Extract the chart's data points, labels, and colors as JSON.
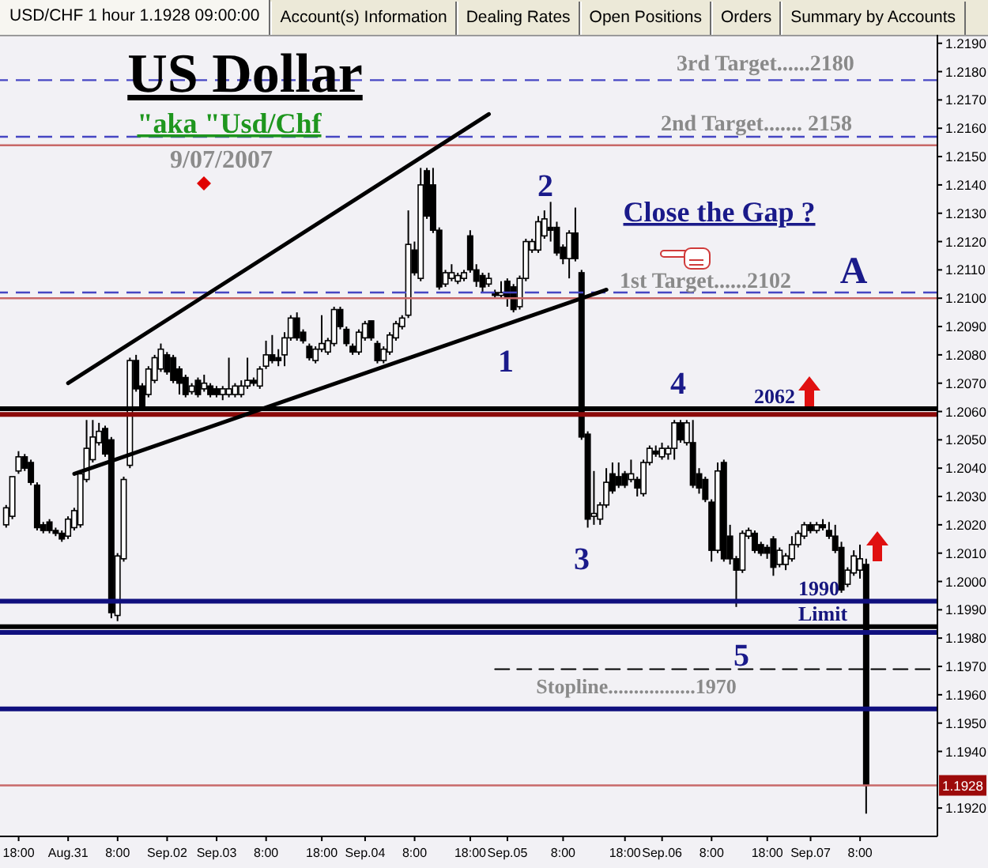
{
  "chart_data": {
    "type": "candlestick",
    "title": "USD/CHF 1 hour 1.1928 09:00:00",
    "categories": [
      null,
      null,
      "18:00",
      null,
      null,
      null,
      null,
      null,
      null,
      null,
      "Aug.31",
      null,
      null,
      null,
      null,
      null,
      null,
      null,
      "8:00",
      null,
      null,
      null,
      null,
      null,
      null,
      null,
      "Sep.02",
      null,
      null,
      null,
      null,
      null,
      null,
      null,
      "Sep.03",
      null,
      null,
      null,
      null,
      null,
      null,
      null,
      "8:00",
      null,
      null,
      null,
      null,
      null,
      null,
      null,
      null,
      "18:00",
      null,
      null,
      null,
      null,
      null,
      null,
      "Sep.04",
      null,
      null,
      null,
      null,
      null,
      null,
      null,
      "8:00",
      null,
      null,
      null,
      null,
      null,
      null,
      null,
      null,
      "18:00",
      null,
      null,
      null,
      null,
      null,
      "Sep.05",
      null,
      null,
      null,
      null,
      null,
      null,
      null,
      null,
      "8:00",
      null,
      null,
      null,
      null,
      null,
      null,
      null,
      null,
      null,
      "18:00",
      null,
      null,
      null,
      null,
      null,
      "Sep.06",
      null,
      null,
      null,
      null,
      null,
      null,
      null,
      "8:00",
      null,
      null,
      null,
      null,
      null,
      null,
      null,
      null,
      "18:00",
      null,
      null,
      null,
      null,
      null,
      null,
      "Sep.07",
      null,
      null,
      null,
      null,
      null,
      null,
      null,
      "8:00",
      null,
      null,
      null,
      null,
      null,
      null,
      null,
      null,
      null,
      null,
      null,
      null
    ],
    "ohlc": [
      [
        1.202,
        1.2027,
        1.2019,
        1.2026
      ],
      [
        1.2023,
        1.2037,
        1.2022,
        1.2037
      ],
      [
        1.2039,
        1.2046,
        1.2038,
        1.2044
      ],
      [
        1.2044,
        1.2045,
        1.2039,
        1.204
      ],
      [
        1.2042,
        1.2043,
        1.2034,
        1.2035
      ],
      [
        1.2034,
        1.2035,
        1.2018,
        1.2019
      ],
      [
        1.202,
        1.2021,
        1.2017,
        1.2018
      ],
      [
        1.2021,
        1.2022,
        1.2017,
        1.2018
      ],
      [
        1.2018,
        1.2019,
        1.2016,
        1.2017
      ],
      [
        1.2017,
        1.2018,
        1.2014,
        1.2015
      ],
      [
        1.2016,
        1.2023,
        1.2015,
        1.2022
      ],
      [
        1.2019,
        1.2026,
        1.2018,
        1.2025
      ],
      [
        1.202,
        1.2039,
        1.2019,
        1.2038
      ],
      [
        1.2036,
        1.2057,
        1.2035,
        1.2047
      ],
      [
        1.2043,
        1.2057,
        1.2042,
        1.2051
      ],
      [
        1.2049,
        1.2056,
        1.2048,
        1.2053
      ],
      [
        1.2054,
        1.2055,
        1.2044,
        1.2045
      ],
      [
        1.205,
        1.2051,
        1.1987,
        1.1989
      ],
      [
        1.1988,
        1.201,
        1.1986,
        1.2009
      ],
      [
        1.2008,
        1.2037,
        1.2007,
        1.2036
      ],
      [
        1.2041,
        1.2079,
        1.204,
        1.2078
      ],
      [
        1.2078,
        1.208,
        1.2067,
        1.2068
      ],
      [
        1.2069,
        1.207,
        1.2061,
        1.2062
      ],
      [
        1.2066,
        1.2076,
        1.2065,
        1.2075
      ],
      [
        1.2071,
        1.208,
        1.207,
        1.2079
      ],
      [
        1.2075,
        1.2084,
        1.2074,
        1.2082
      ],
      [
        1.208,
        1.2081,
        1.2073,
        1.2074
      ],
      [
        1.2079,
        1.208,
        1.207,
        1.2071
      ],
      [
        1.2075,
        1.2076,
        1.2066,
        1.207
      ],
      [
        1.2072,
        1.2073,
        1.2065,
        1.2066
      ],
      [
        1.2067,
        1.207,
        1.2066,
        1.2069
      ],
      [
        1.2071,
        1.2072,
        1.2065,
        1.2066
      ],
      [
        1.2068,
        1.2073,
        1.2067,
        1.207
      ],
      [
        1.2069,
        1.207,
        1.2065,
        1.2066
      ],
      [
        1.2068,
        1.2069,
        1.2065,
        1.2066
      ],
      [
        1.2066,
        1.2069,
        1.2064,
        1.2068
      ],
      [
        1.2066,
        1.2079,
        1.2065,
        1.2068
      ],
      [
        1.2066,
        1.207,
        1.2065,
        1.2069
      ],
      [
        1.2066,
        1.2071,
        1.2065,
        1.2069
      ],
      [
        1.2069,
        1.2079,
        1.2068,
        1.2071
      ],
      [
        1.2071,
        1.2072,
        1.2069,
        1.207
      ],
      [
        1.2069,
        1.2076,
        1.2068,
        1.2075
      ],
      [
        1.2076,
        1.2085,
        1.2075,
        1.208
      ],
      [
        1.208,
        1.2087,
        1.2077,
        1.2078
      ],
      [
        1.2079,
        1.2082,
        1.2076,
        1.2078
      ],
      [
        1.208,
        1.2088,
        1.2076,
        1.2086
      ],
      [
        1.2086,
        1.2094,
        1.2085,
        1.2093
      ],
      [
        1.2093,
        1.2095,
        1.2085,
        1.2086
      ],
      [
        1.2088,
        1.2089,
        1.2084,
        1.2085
      ],
      [
        1.2083,
        1.2084,
        1.2078,
        1.2079
      ],
      [
        1.2078,
        1.2083,
        1.2077,
        1.2082
      ],
      [
        1.2082,
        1.2094,
        1.2081,
        1.2084
      ],
      [
        1.2081,
        1.2086,
        1.208,
        1.2085
      ],
      [
        1.2084,
        1.2097,
        1.2083,
        1.2096
      ],
      [
        1.2096,
        1.2097,
        1.2089,
        1.209
      ],
      [
        1.2089,
        1.209,
        1.2083,
        1.2084
      ],
      [
        1.2083,
        1.2084,
        1.208,
        1.2081
      ],
      [
        1.2081,
        1.2089,
        1.208,
        1.2088
      ],
      [
        1.2086,
        1.2092,
        1.2085,
        1.2091
      ],
      [
        1.2092,
        1.2092,
        1.2085,
        1.2086
      ],
      [
        1.2084,
        1.2085,
        1.2077,
        1.2078
      ],
      [
        1.2078,
        1.2083,
        1.2077,
        1.2082
      ],
      [
        1.2081,
        1.2088,
        1.208,
        1.2087
      ],
      [
        1.2086,
        1.2092,
        1.2085,
        1.2091
      ],
      [
        1.209,
        1.2094,
        1.2089,
        1.2093
      ],
      [
        1.2094,
        1.2131,
        1.2093,
        1.2119
      ],
      [
        1.2117,
        1.212,
        1.2108,
        1.2109
      ],
      [
        1.2107,
        1.2146,
        1.2106,
        1.214
      ],
      [
        1.2145,
        1.2146,
        1.2128,
        1.2129
      ],
      [
        1.214,
        1.2146,
        1.2123,
        1.2124
      ],
      [
        1.2124,
        1.2125,
        1.2103,
        1.2104
      ],
      [
        1.2105,
        1.211,
        1.2104,
        1.2109
      ],
      [
        1.2107,
        1.2112,
        1.2106,
        1.2109
      ],
      [
        1.2106,
        1.2109,
        1.2105,
        1.2108
      ],
      [
        1.2107,
        1.211,
        1.2106,
        1.2109
      ],
      [
        1.2122,
        1.2124,
        1.2109,
        1.211
      ],
      [
        1.211,
        1.2112,
        1.2104,
        1.2106
      ],
      [
        1.2108,
        1.2109,
        1.2102,
        1.2104
      ],
      [
        1.2105,
        1.2109,
        1.2104,
        1.2107
      ],
      [
        1.2102,
        1.2103,
        1.21,
        1.2101
      ],
      [
        1.2101,
        1.2106,
        1.21,
        1.2102
      ],
      [
        1.2106,
        1.2107,
        1.2097,
        1.21
      ],
      [
        1.2104,
        1.2105,
        1.2095,
        1.2096
      ],
      [
        1.2097,
        1.2108,
        1.2096,
        1.2107
      ],
      [
        1.2107,
        1.2121,
        1.2106,
        1.212
      ],
      [
        1.2117,
        1.2121,
        1.2116,
        1.212
      ],
      [
        1.2117,
        1.2129,
        1.2116,
        1.2127
      ],
      [
        1.2122,
        1.2131,
        1.2121,
        1.2128
      ],
      [
        1.2125,
        1.2134,
        1.212,
        1.2124
      ],
      [
        1.2125,
        1.2127,
        1.2115,
        1.2116
      ],
      [
        1.2118,
        1.2119,
        1.2112,
        1.2114
      ],
      [
        1.2114,
        1.2124,
        1.2107,
        1.2123
      ],
      [
        1.2123,
        1.2132,
        1.2113,
        1.2114
      ],
      [
        1.2109,
        1.211,
        1.205,
        1.2051
      ],
      [
        1.2052,
        1.2053,
        1.2019,
        1.2022
      ],
      [
        1.2023,
        1.2039,
        1.202,
        1.2024
      ],
      [
        1.2022,
        1.2028,
        1.202,
        1.2027
      ],
      [
        1.2027,
        1.204,
        1.2026,
        1.2035
      ],
      [
        1.2038,
        1.2042,
        1.2031,
        1.2032
      ],
      [
        1.2037,
        1.2042,
        1.2033,
        1.2034
      ],
      [
        1.2038,
        1.2039,
        1.2033,
        1.2034
      ],
      [
        1.2036,
        1.2043,
        1.2035,
        1.2038
      ],
      [
        1.2036,
        1.2037,
        1.203,
        1.2033
      ],
      [
        1.2031,
        1.2043,
        1.203,
        1.2042
      ],
      [
        1.2042,
        1.2048,
        1.2041,
        1.2047
      ],
      [
        1.2046,
        1.2048,
        1.2044,
        1.2045
      ],
      [
        1.2044,
        1.2049,
        1.2043,
        1.2047
      ],
      [
        1.2045,
        1.2048,
        1.2043,
        1.2047
      ],
      [
        1.2047,
        1.2057,
        1.2043,
        1.2056
      ],
      [
        1.2056,
        1.2057,
        1.2049,
        1.205
      ],
      [
        1.2049,
        1.2057,
        1.2048,
        1.2056
      ],
      [
        1.2049,
        1.2057,
        1.2033,
        1.2034
      ],
      [
        1.2038,
        1.204,
        1.2031,
        1.2033
      ],
      [
        1.2036,
        1.2037,
        1.2028,
        1.2029
      ],
      [
        1.2028,
        1.2029,
        1.2007,
        1.2011
      ],
      [
        1.2011,
        1.2042,
        1.201,
        1.2039
      ],
      [
        1.2042,
        1.2043,
        1.2007,
        1.2008
      ],
      [
        1.2016,
        1.202,
        1.2006,
        1.2008
      ],
      [
        1.2008,
        1.2009,
        1.1991,
        1.2004
      ],
      [
        1.2004,
        1.2018,
        1.2003,
        1.2017
      ],
      [
        1.2016,
        1.2019,
        1.2015,
        1.2018
      ],
      [
        1.2017,
        1.2018,
        1.201,
        1.2011
      ],
      [
        1.2013,
        1.2014,
        1.2009,
        1.201
      ],
      [
        1.2012,
        1.2013,
        1.2008,
        1.201
      ],
      [
        1.2015,
        1.2016,
        1.2002,
        1.2005
      ],
      [
        1.2006,
        1.2012,
        1.2005,
        1.2011
      ],
      [
        1.2006,
        1.201,
        1.2004,
        1.2009
      ],
      [
        1.2008,
        1.2016,
        1.2007,
        1.2013
      ],
      [
        1.2013,
        1.2018,
        1.2012,
        1.2017
      ],
      [
        1.2016,
        1.2021,
        1.2015,
        1.202
      ],
      [
        1.202,
        1.2021,
        1.2017,
        1.2018
      ],
      [
        1.2018,
        1.2021,
        1.2017,
        1.202
      ],
      [
        1.202,
        1.2022,
        1.2018,
        1.2019
      ],
      [
        1.2018,
        1.2021,
        1.2015,
        1.2016
      ],
      [
        1.2016,
        1.202,
        1.201,
        1.2011
      ],
      [
        1.2012,
        1.2014,
        1.1996,
        1.1997
      ],
      [
        1.1999,
        1.2005,
        1.1998,
        1.2004
      ],
      [
        1.2003,
        1.2011,
        1.2002,
        1.2009
      ],
      [
        1.2004,
        1.2013,
        1.2001,
        1.2008
      ],
      [
        1.2006,
        1.2008,
        1.1918,
        1.1928
      ],
      null,
      null,
      null,
      null,
      null,
      null,
      null,
      null,
      null,
      null,
      null
    ],
    "series": [
      {
        "type": "line",
        "color": "#000000",
        "values": [
          null,
          null,
          null,
          null,
          null,
          null,
          null,
          null,
          null,
          null,
          1.207,
          null,
          null,
          null,
          null,
          null,
          null,
          null,
          null,
          null,
          null,
          null,
          null,
          null,
          null,
          null,
          null,
          null,
          null,
          null,
          null,
          null,
          null,
          null,
          null,
          null,
          null,
          null,
          null,
          null,
          null,
          null,
          null,
          null,
          null,
          null,
          null,
          null,
          null,
          null,
          null,
          null,
          null,
          null,
          null,
          null,
          null,
          null,
          null,
          null,
          null,
          null,
          null,
          null,
          null,
          null,
          null,
          null,
          null,
          null,
          null,
          null,
          null,
          null,
          null,
          null,
          null,
          null,
          1.2165,
          null,
          null,
          null,
          null,
          null,
          null,
          null,
          null,
          null,
          null,
          null,
          null,
          null,
          null,
          null,
          null,
          null,
          null,
          null,
          null,
          null,
          null,
          null,
          null,
          null,
          null,
          null,
          null,
          null,
          null,
          null,
          null,
          null,
          null,
          null,
          null,
          null,
          null,
          null,
          null,
          null,
          null,
          null,
          null,
          null,
          null,
          null,
          null,
          null,
          null,
          null,
          null,
          null,
          null,
          null,
          null,
          null,
          null,
          null,
          null,
          null,
          null,
          null,
          null,
          null,
          null,
          null,
          null,
          null,
          null,
          null,
          null
        ]
      },
      {
        "type": "line",
        "color": "#000000",
        "values": [
          null,
          null,
          null,
          null,
          null,
          null,
          null,
          null,
          null,
          null,
          null,
          1.2038,
          null,
          null,
          null,
          null,
          null,
          null,
          null,
          null,
          null,
          null,
          null,
          null,
          null,
          null,
          null,
          null,
          null,
          null,
          null,
          null,
          null,
          null,
          null,
          null,
          null,
          null,
          null,
          null,
          null,
          null,
          null,
          null,
          null,
          null,
          null,
          null,
          null,
          null,
          null,
          null,
          null,
          null,
          null,
          null,
          null,
          null,
          null,
          null,
          null,
          null,
          null,
          null,
          null,
          null,
          null,
          null,
          null,
          null,
          null,
          null,
          null,
          null,
          null,
          null,
          null,
          null,
          null,
          null,
          null,
          null,
          null,
          null,
          null,
          null,
          null,
          null,
          null,
          null,
          null,
          null,
          null,
          null,
          null,
          null,
          null,
          1.2103,
          null,
          null,
          null,
          null,
          null,
          null,
          null,
          null,
          null,
          null,
          null,
          null,
          null,
          null,
          null,
          null,
          null,
          null,
          null,
          null,
          null,
          null,
          null,
          null,
          null,
          null,
          null,
          null,
          null,
          null,
          null,
          null,
          null,
          null,
          null,
          null,
          null,
          null,
          null,
          null,
          null,
          null,
          null,
          null,
          null,
          null,
          null,
          null,
          null,
          null,
          null,
          null,
          null
        ]
      },
      {
        "type": "line",
        "name": "Stopline.................1970",
        "color": "#000000",
        "line_style": "dashed",
        "values": [
          null,
          null,
          null,
          null,
          null,
          null,
          null,
          null,
          null,
          null,
          null,
          null,
          null,
          null,
          null,
          null,
          null,
          null,
          null,
          null,
          null,
          null,
          null,
          null,
          null,
          null,
          null,
          null,
          null,
          null,
          null,
          null,
          null,
          null,
          null,
          null,
          null,
          null,
          null,
          null,
          null,
          null,
          null,
          null,
          null,
          null,
          null,
          null,
          null,
          null,
          null,
          null,
          null,
          null,
          null,
          null,
          null,
          null,
          null,
          null,
          null,
          null,
          null,
          null,
          null,
          null,
          null,
          null,
          null,
          null,
          null,
          null,
          null,
          null,
          null,
          null,
          null,
          null,
          null,
          1.1969,
          null,
          null,
          null,
          null,
          null,
          null,
          null,
          null,
          null,
          null,
          null,
          null,
          null,
          null,
          null,
          null,
          null,
          null,
          null,
          null,
          null,
          null,
          null,
          null,
          null,
          null,
          null,
          null,
          null,
          null,
          null,
          null,
          null,
          null,
          null,
          null,
          null,
          null,
          null,
          null,
          null,
          null,
          null,
          null,
          null,
          null,
          null,
          null,
          null,
          null,
          null,
          null,
          null,
          null,
          null,
          null,
          null,
          null,
          null,
          null,
          null,
          null,
          null,
          null,
          null,
          null,
          null,
          null,
          null,
          null,
          1.1969
        ]
      }
    ],
    "ylim": [
      1.191,
      1.2193
    ],
    "yticks": [
      {
        "value": 1.192,
        "label": "1.1920"
      },
      {
        "value": 1.194,
        "label": "1.1940"
      },
      {
        "value": 1.195,
        "label": "1.1950"
      },
      {
        "value": 1.196,
        "label": "1.1960"
      },
      {
        "value": 1.197,
        "label": "1.1970"
      },
      {
        "value": 1.198,
        "label": "1.1980"
      },
      {
        "value": 1.199,
        "label": "1.1990"
      },
      {
        "value": 1.2,
        "label": "1.2000"
      },
      {
        "value": 1.201,
        "label": "1.2010"
      },
      {
        "value": 1.202,
        "label": "1.2020"
      },
      {
        "value": 1.203,
        "label": "1.2030"
      },
      {
        "value": 1.204,
        "label": "1.2040"
      },
      {
        "value": 1.205,
        "label": "1.2050"
      },
      {
        "value": 1.206,
        "label": "1.2060"
      },
      {
        "value": 1.207,
        "label": "1.2070"
      },
      {
        "value": 1.208,
        "label": "1.2080"
      },
      {
        "value": 1.209,
        "label": "1.2090"
      },
      {
        "value": 1.21,
        "label": "1.2100"
      },
      {
        "value": 1.211,
        "label": "1.2110"
      },
      {
        "value": 1.212,
        "label": "1.2120"
      },
      {
        "value": 1.213,
        "label": "1.2130"
      },
      {
        "value": 1.214,
        "label": "1.2140"
      },
      {
        "value": 1.215,
        "label": "1.2150"
      },
      {
        "value": 1.216,
        "label": "1.2160"
      },
      {
        "value": 1.217,
        "label": "1.2170"
      },
      {
        "value": 1.218,
        "label": "1.2180"
      },
      {
        "value": 1.219,
        "label": "1.2190"
      }
    ],
    "ref_lines": [
      {
        "axis": "y",
        "value": 1.2177,
        "label": "3rd Target......2180",
        "color": "#4646c3",
        "line_style": "dashed"
      },
      {
        "axis": "y",
        "value": 1.2157,
        "label": "2nd Target....... 2158",
        "color": "#4646c3",
        "line_style": "dashed"
      },
      {
        "axis": "y",
        "value": 1.2154,
        "label": null,
        "color": "#c86868",
        "line_style": "solid"
      },
      {
        "axis": "y",
        "value": 1.2102,
        "label": "1st Target......2102",
        "color": "#4646c3",
        "line_style": "dashed"
      },
      {
        "axis": "y",
        "value": 1.21,
        "label": null,
        "color": "#c86868",
        "line_style": "solid"
      },
      {
        "axis": "y",
        "value": 1.2061,
        "label": null,
        "color": "#000000",
        "line_style": "solid"
      },
      {
        "axis": "y",
        "value": 1.2059,
        "label": null,
        "color": "#8b0a0a",
        "line_style": "solid"
      },
      {
        "axis": "y",
        "value": 1.1993,
        "label": "1990 Limit",
        "color": "#10107e",
        "line_style": "solid"
      },
      {
        "axis": "y",
        "value": 1.1984,
        "label": null,
        "color": "#000000",
        "line_style": "solid"
      },
      {
        "axis": "y",
        "value": 1.1982,
        "label": null,
        "color": "#10107e",
        "line_style": "solid"
      },
      {
        "axis": "y",
        "value": 1.1955,
        "label": null,
        "color": "#10107e",
        "line_style": "solid"
      },
      {
        "axis": "y",
        "value": 1.1928,
        "label": "1.1928",
        "color": "#c86868",
        "line_style": "solid"
      }
    ],
    "annotations": [
      "US Dollar",
      "\"aka \"Usd/Chf",
      "9/07/2007",
      "Close the Gap ?",
      "A",
      "1",
      "2",
      "3",
      "4",
      "5",
      "2062",
      "Account(s) Information",
      "Dealing Rates",
      "Open Positions",
      "Orders",
      "Summary by Accounts"
    ]
  }
}
